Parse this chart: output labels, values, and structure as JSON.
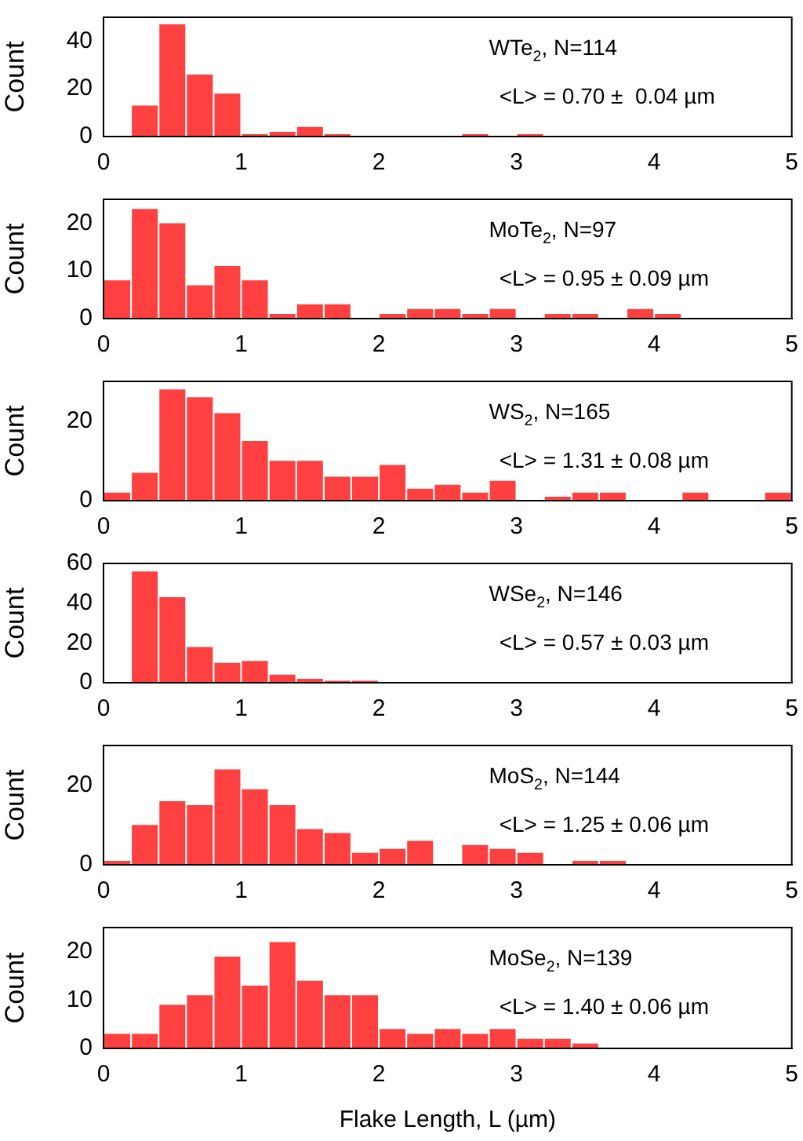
{
  "chart_data": [
    {
      "type": "histogram",
      "ylabel": "Count",
      "color": "#ff0000",
      "bins": [
        0,
        0.2,
        0.4,
        0.6,
        0.8,
        1,
        1.2,
        1.4,
        1.6,
        1.8,
        2,
        2.2,
        2.4,
        2.6,
        2.8,
        3,
        3.2,
        3.4,
        3.6,
        3.8,
        4,
        4.2,
        4.4,
        4.6,
        4.8,
        5
      ],
      "values": [
        0,
        13,
        47,
        26,
        18,
        1,
        2,
        4,
        1,
        0,
        0,
        0,
        0,
        1,
        0,
        1,
        0,
        0,
        0,
        0,
        0,
        0,
        0,
        0,
        0
      ],
      "xlim": [
        0,
        5
      ],
      "xticks": [
        0,
        1,
        2,
        3,
        4,
        5
      ],
      "ylim": [
        0,
        50
      ],
      "yticks": [
        0,
        20,
        40
      ],
      "grid": false,
      "legend": false,
      "annotations": [
        "WTe$_{2}$, N=114",
        "<L> = 0.70 ±  0.04 µm"
      ]
    },
    {
      "type": "histogram",
      "ylabel": "Count",
      "color": "#ff0000",
      "bins": [
        0,
        0.2,
        0.4,
        0.6,
        0.8,
        1,
        1.2,
        1.4,
        1.6,
        1.8,
        2,
        2.2,
        2.4,
        2.6,
        2.8,
        3,
        3.2,
        3.4,
        3.6,
        3.8,
        4,
        4.2,
        4.4,
        4.6,
        4.8,
        5
      ],
      "values": [
        8,
        23,
        20,
        7,
        11,
        8,
        1,
        3,
        3,
        0,
        1,
        2,
        2,
        1,
        2,
        0,
        1,
        1,
        0,
        2,
        1,
        0,
        0,
        0,
        0
      ],
      "xlim": [
        0,
        5
      ],
      "xticks": [
        0,
        1,
        2,
        3,
        4,
        5
      ],
      "ylim": [
        0,
        25
      ],
      "yticks": [
        0,
        10,
        20
      ],
      "grid": false,
      "legend": false,
      "annotations": [
        "MoTe$_{2}$, N=97",
        "<L> = 0.95 ± 0.09 µm"
      ]
    },
    {
      "type": "histogram",
      "ylabel": "Count",
      "color": "#ff0000",
      "bins": [
        0,
        0.2,
        0.4,
        0.6,
        0.8,
        1,
        1.2,
        1.4,
        1.6,
        1.8,
        2,
        2.2,
        2.4,
        2.6,
        2.8,
        3,
        3.2,
        3.4,
        3.6,
        3.8,
        4,
        4.2,
        4.4,
        4.6,
        4.8,
        5
      ],
      "values": [
        2,
        7,
        28,
        26,
        22,
        15,
        10,
        10,
        6,
        6,
        9,
        3,
        4,
        2,
        5,
        0,
        1,
        2,
        2,
        0,
        0,
        2,
        0,
        0,
        2
      ],
      "xlim": [
        0,
        5
      ],
      "xticks": [
        0,
        1,
        2,
        3,
        4,
        5
      ],
      "ylim": [
        0,
        30
      ],
      "yticks": [
        0,
        20
      ],
      "grid": false,
      "legend": false,
      "annotations": [
        "WS$_{2}$, N=165",
        "<L> = 1.31 ± 0.08 µm"
      ]
    },
    {
      "type": "histogram",
      "ylabel": "Count",
      "color": "#ff0000",
      "bins": [
        0,
        0.2,
        0.4,
        0.6,
        0.8,
        1,
        1.2,
        1.4,
        1.6,
        1.8,
        2,
        2.2,
        2.4,
        2.6,
        2.8,
        3,
        3.2,
        3.4,
        3.6,
        3.8,
        4,
        4.2,
        4.4,
        4.6,
        4.8,
        5
      ],
      "values": [
        0,
        56,
        43,
        18,
        10,
        11,
        4,
        2,
        1,
        1,
        0,
        0,
        0,
        0,
        0,
        0,
        0,
        0,
        0,
        0,
        0,
        0,
        0,
        0,
        0
      ],
      "xlim": [
        0,
        5
      ],
      "xticks": [
        0,
        1,
        2,
        3,
        4,
        5
      ],
      "ylim": [
        0,
        60
      ],
      "yticks": [
        0,
        20,
        40,
        60
      ],
      "grid": false,
      "legend": false,
      "annotations": [
        "WSe$_{2}$, N=146",
        "<L> = 0.57 ± 0.03 µm"
      ]
    },
    {
      "type": "histogram",
      "ylabel": "Count",
      "color": "#ff0000",
      "bins": [
        0,
        0.2,
        0.4,
        0.6,
        0.8,
        1,
        1.2,
        1.4,
        1.6,
        1.8,
        2,
        2.2,
        2.4,
        2.6,
        2.8,
        3,
        3.2,
        3.4,
        3.6,
        3.8,
        4,
        4.2,
        4.4,
        4.6,
        4.8,
        5
      ],
      "values": [
        1,
        10,
        16,
        15,
        24,
        19,
        15,
        9,
        8,
        3,
        4,
        6,
        0,
        5,
        4,
        3,
        0,
        1,
        1,
        0,
        0,
        0,
        0,
        0,
        0
      ],
      "xlim": [
        0,
        5
      ],
      "xticks": [
        0,
        1,
        2,
        3,
        4,
        5
      ],
      "ylim": [
        0,
        30
      ],
      "yticks": [
        0,
        20
      ],
      "grid": false,
      "legend": false,
      "annotations": [
        "MoS$_{2}$, N=144",
        "<L> = 1.25 ± 0.06 µm"
      ]
    },
    {
      "type": "histogram",
      "ylabel": "Count",
      "xlabel": "Flake Length, L (µm)",
      "color": "#ff0000",
      "bins": [
        0,
        0.2,
        0.4,
        0.6,
        0.8,
        1,
        1.2,
        1.4,
        1.6,
        1.8,
        2,
        2.2,
        2.4,
        2.6,
        2.8,
        3,
        3.2,
        3.4,
        3.6,
        3.8,
        4,
        4.2,
        4.4,
        4.6,
        4.8,
        5
      ],
      "values": [
        3,
        3,
        9,
        11,
        19,
        13,
        22,
        14,
        11,
        11,
        4,
        3,
        4,
        3,
        4,
        2,
        2,
        1,
        0,
        0,
        0,
        0,
        0,
        0,
        0
      ],
      "xlim": [
        0,
        5
      ],
      "xticks": [
        0,
        1,
        2,
        3,
        4,
        5
      ],
      "ylim": [
        0,
        25
      ],
      "yticks": [
        0,
        10,
        20
      ],
      "grid": false,
      "legend": false,
      "annotations": [
        "MoSe$_{2}$, N=139",
        "<L> = 1.40 ± 0.06 µm"
      ]
    }
  ]
}
